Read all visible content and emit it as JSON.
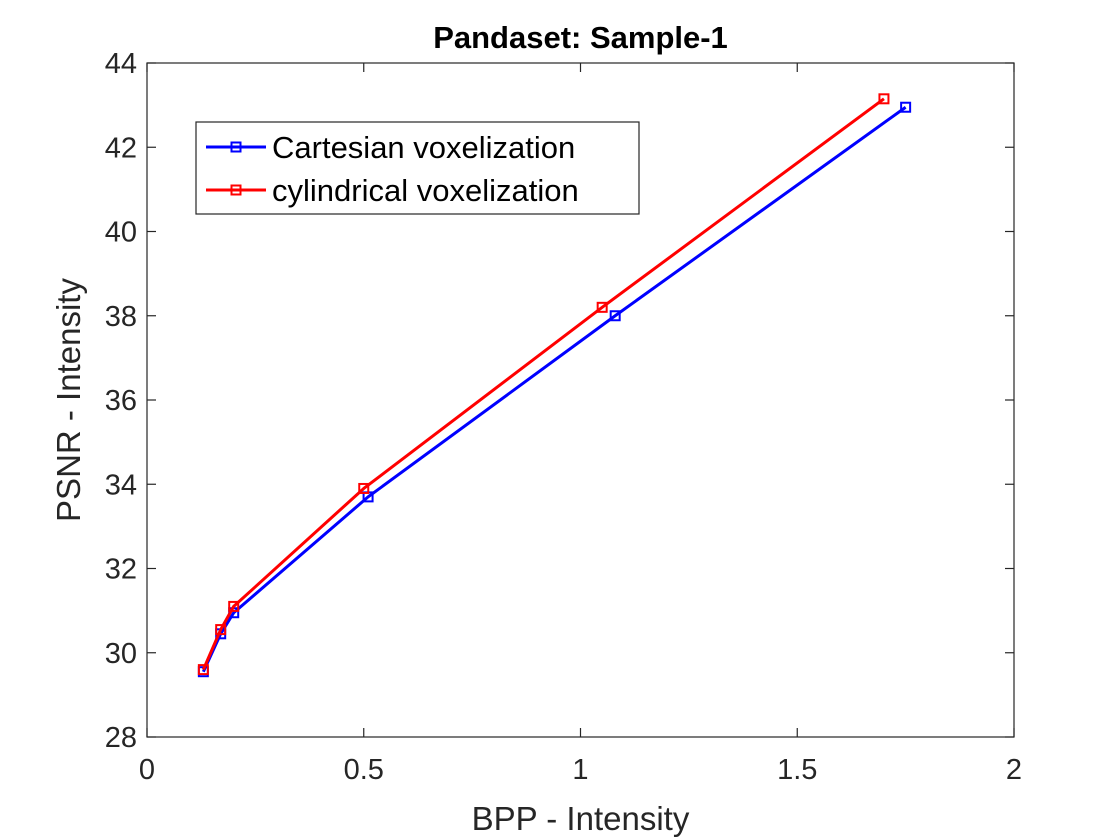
{
  "chart_data": {
    "type": "line",
    "title": "Pandaset: Sample-1",
    "xlabel": "BPP - Intensity",
    "ylabel": "PSNR - Intensity",
    "xlim": [
      0,
      2
    ],
    "ylim": [
      28,
      44
    ],
    "xticks": [
      0,
      0.5,
      1,
      1.5,
      2
    ],
    "xtick_labels": [
      "0",
      "0.5",
      "1",
      "1.5",
      "2"
    ],
    "yticks": [
      28,
      30,
      32,
      34,
      36,
      38,
      40,
      42,
      44
    ],
    "ytick_labels": [
      "28",
      "30",
      "32",
      "34",
      "36",
      "38",
      "40",
      "42",
      "44"
    ],
    "grid": false,
    "legend_position": "top-left",
    "series": [
      {
        "name": "Cartesian voxelization",
        "color": "#0000ff",
        "marker": "square",
        "x": [
          0.13,
          0.17,
          0.2,
          0.51,
          1.08,
          1.75
        ],
        "y": [
          29.55,
          30.45,
          30.95,
          33.7,
          38.0,
          42.95
        ]
      },
      {
        "name": "cylindrical voxelization",
        "color": "#ff0000",
        "marker": "square",
        "x": [
          0.13,
          0.17,
          0.2,
          0.5,
          1.05,
          1.7
        ],
        "y": [
          29.6,
          30.55,
          31.1,
          33.9,
          38.2,
          43.15
        ]
      }
    ]
  }
}
